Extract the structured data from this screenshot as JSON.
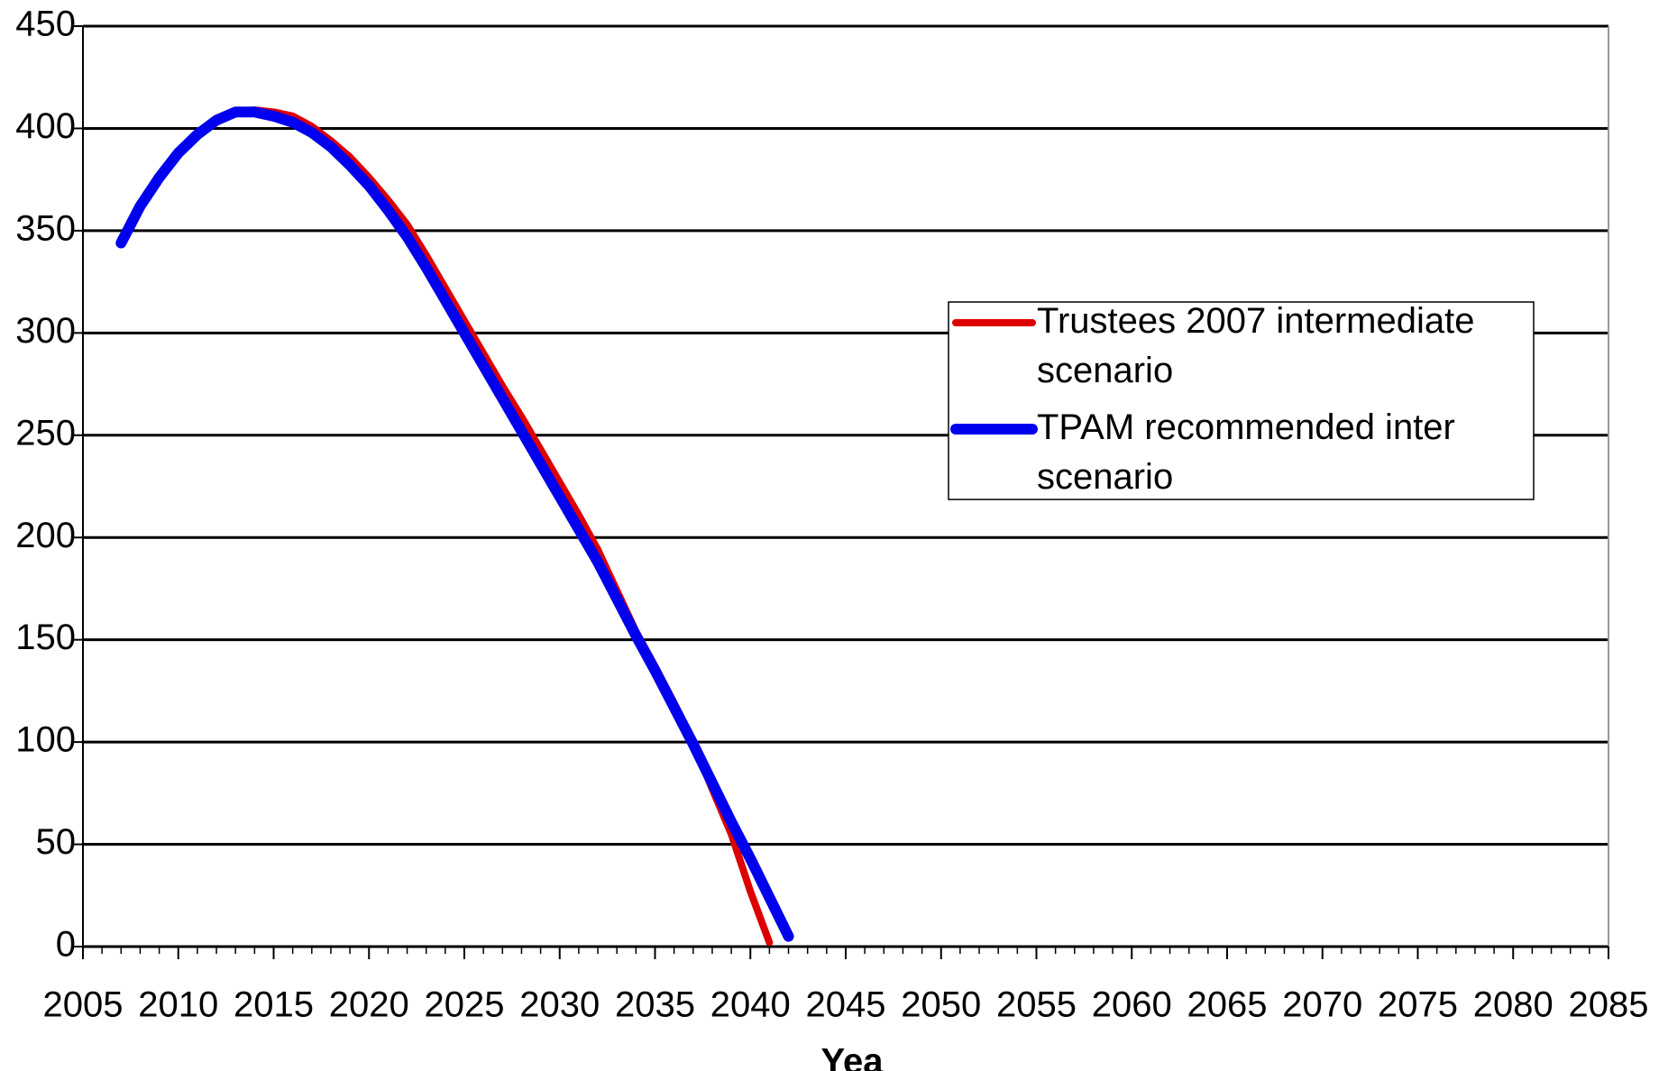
{
  "chart_data": {
    "type": "line",
    "x_label": "Yea",
    "x": [
      2007,
      2008,
      2009,
      2010,
      2011,
      2012,
      2013,
      2014,
      2015,
      2016,
      2017,
      2018,
      2019,
      2020,
      2021,
      2022,
      2023,
      2024,
      2025,
      2026,
      2027,
      2028,
      2029,
      2030,
      2031,
      2032,
      2033,
      2034,
      2035,
      2036,
      2037,
      2038,
      2039,
      2040,
      2041,
      2042
    ],
    "series": [
      {
        "name": "Trustees 2007 intermediate scenario",
        "color": "#dd0000",
        "values": [
          345,
          363,
          377,
          389,
          398,
          404,
          408,
          409,
          408,
          406,
          401,
          394,
          386,
          376,
          365,
          353,
          338,
          322,
          306,
          290,
          274,
          259,
          243,
          227,
          211,
          194,
          174,
          154,
          137,
          119,
          100,
          77,
          55,
          27,
          2,
          null
        ]
      },
      {
        "name": "TPAM  recommended inter scenario",
        "color": "#0000ee",
        "values": [
          344,
          362,
          376,
          388,
          397,
          404,
          408,
          408,
          406,
          403,
          398,
          391,
          382,
          372,
          360,
          347,
          332,
          316,
          300,
          284,
          268,
          252,
          236,
          220,
          204,
          188,
          170,
          152,
          135,
          117,
          99,
          80,
          61,
          43,
          24,
          5
        ]
      }
    ],
    "xlim": [
      2005,
      2085
    ],
    "xticks": [
      2005,
      2010,
      2015,
      2020,
      2025,
      2030,
      2035,
      2040,
      2045,
      2050,
      2055,
      2060,
      2065,
      2070,
      2075,
      2080,
      2085
    ],
    "minor_tick_step": 1,
    "ylim": [
      0,
      450
    ],
    "yticks": [
      0,
      50,
      100,
      150,
      200,
      250,
      300,
      350,
      400,
      450
    ],
    "grid": true,
    "legend": "right"
  }
}
